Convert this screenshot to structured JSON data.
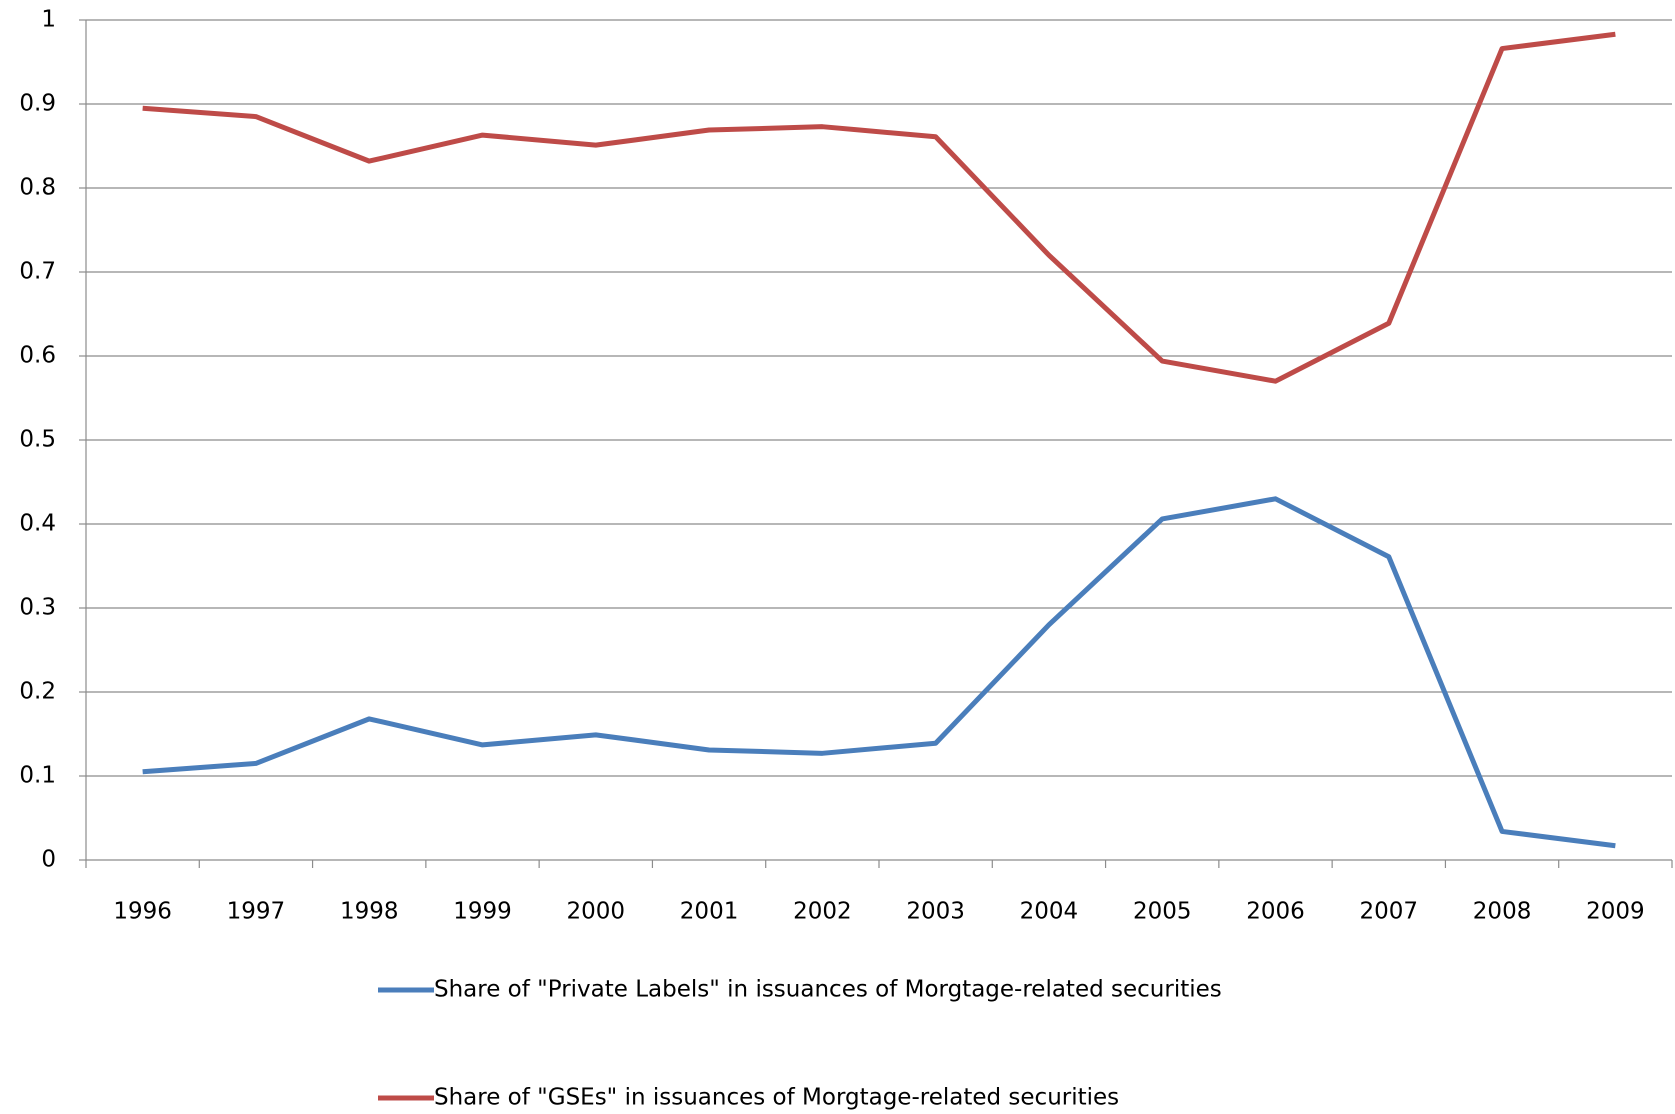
{
  "chart_data": {
    "type": "line",
    "categories": [
      "1996",
      "1997",
      "1998",
      "1999",
      "2000",
      "2001",
      "2002",
      "2003",
      "2004",
      "2005",
      "2006",
      "2007",
      "2008",
      "2009"
    ],
    "series": [
      {
        "name": "Share of \"Private Labels\" in issuances of Morgtage-related securities",
        "color": "#4a7ebb",
        "values": [
          0.105,
          0.115,
          0.168,
          0.137,
          0.149,
          0.131,
          0.127,
          0.139,
          0.28,
          0.406,
          0.43,
          0.361,
          0.034,
          0.017
        ]
      },
      {
        "name": "Share of \"GSEs\" in issuances of Morgtage-related securities",
        "color": "#be4b48",
        "values": [
          0.895,
          0.885,
          0.832,
          0.863,
          0.851,
          0.869,
          0.873,
          0.861,
          0.72,
          0.594,
          0.57,
          0.639,
          0.966,
          0.983
        ]
      }
    ],
    "ylim": [
      0,
      1
    ],
    "yticks": [
      0,
      0.1,
      0.2,
      0.3,
      0.4,
      0.5,
      0.6,
      0.7,
      0.8,
      0.9,
      1
    ],
    "grid": true,
    "legend": "bottom"
  }
}
